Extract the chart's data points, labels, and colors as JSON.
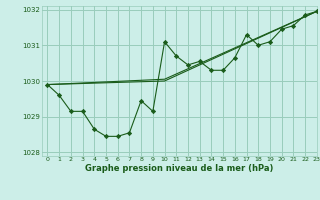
{
  "title": "Graphe pression niveau de la mer (hPa)",
  "bg_color": "#cceee8",
  "grid_color": "#99ccbb",
  "line_color": "#1a5c1a",
  "marker_color": "#1a5c1a",
  "xlim": [
    -0.5,
    23
  ],
  "ylim": [
    1027.9,
    1032.1
  ],
  "yticks": [
    1028,
    1029,
    1030,
    1031,
    1032
  ],
  "xticks": [
    0,
    1,
    2,
    3,
    4,
    5,
    6,
    7,
    8,
    9,
    10,
    11,
    12,
    13,
    14,
    15,
    16,
    17,
    18,
    19,
    20,
    21,
    22,
    23
  ],
  "main_x": [
    0,
    1,
    2,
    3,
    4,
    5,
    6,
    7,
    8,
    9,
    10,
    11,
    12,
    13,
    14,
    15,
    16,
    17,
    18,
    19,
    20,
    21,
    22,
    23
  ],
  "main_y": [
    1029.9,
    1029.6,
    1029.15,
    1029.15,
    1028.65,
    1028.45,
    1028.45,
    1028.55,
    1029.45,
    1029.15,
    1031.1,
    1030.7,
    1030.45,
    1030.55,
    1030.3,
    1030.3,
    1030.65,
    1031.3,
    1031.0,
    1031.1,
    1031.45,
    1031.55,
    1031.85,
    1031.95
  ],
  "trend1_x": [
    0,
    10,
    23
  ],
  "trend1_y": [
    1029.9,
    1030.0,
    1031.95
  ],
  "trend2_x": [
    0,
    10,
    23
  ],
  "trend2_y": [
    1029.9,
    1030.05,
    1031.95
  ]
}
